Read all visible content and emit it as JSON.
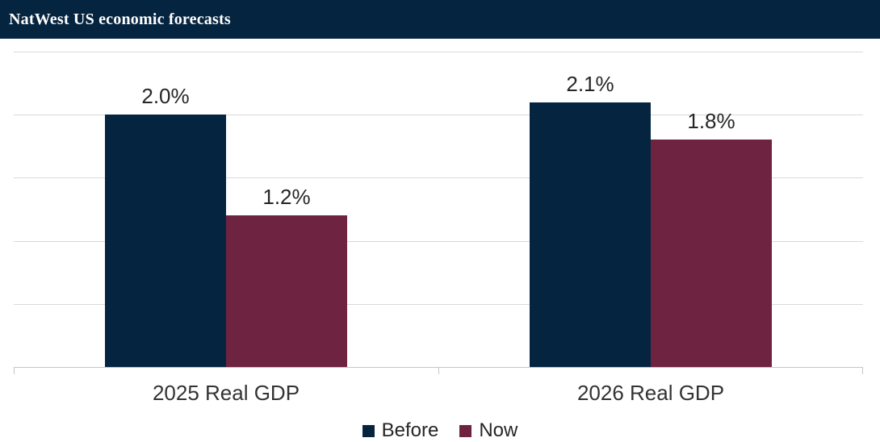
{
  "header": {
    "title": "NatWest US economic forecasts"
  },
  "colors": {
    "header_bg": "#052440",
    "header_text": "#ffffff",
    "gridline": "#d9d9d9",
    "axis": "#c6c6c6",
    "label_text": "#262626"
  },
  "chart_data": {
    "type": "bar",
    "title": "NatWest US economic forecasts",
    "categories": [
      "2025 Real GDP",
      "2026 Real GDP"
    ],
    "series": [
      {
        "name": "Before",
        "color": "#052440",
        "values": [
          2.0,
          2.1
        ],
        "data_labels": [
          "2.0%",
          "2.1%"
        ]
      },
      {
        "name": "Now",
        "color": "#6e2340",
        "values": [
          1.2,
          1.8
        ],
        "data_labels": [
          "1.2%",
          "1.8%"
        ]
      }
    ],
    "xlabel": "",
    "ylabel": "",
    "ylim": [
      0,
      2.5
    ],
    "gridline_step": 0.5,
    "y_axis_tick_labels_visible": false,
    "grid": true,
    "legend_position": "bottom",
    "legend_labels": [
      "Before",
      "Now"
    ]
  }
}
